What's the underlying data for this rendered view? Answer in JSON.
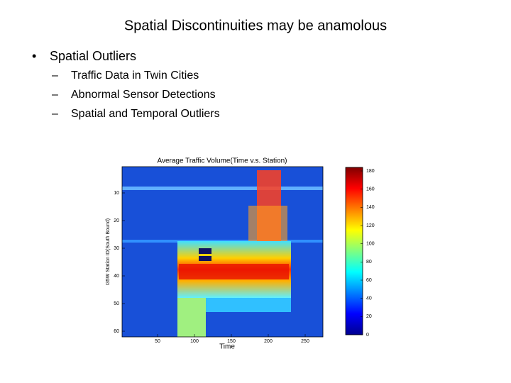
{
  "slide": {
    "title": "Spatial Discontinuities may be anamolous",
    "bullet": "Spatial Outliers",
    "sub_bullets": [
      "Traffic Data in Twin Cities",
      "Abnormal Sensor Detections",
      "Spatial and Temporal Outliers"
    ],
    "figure": {
      "title": "Average Traffic Volume(Time v.s. Station)",
      "x_label": "Time",
      "y_label": "I35W Station ID(South Bound)",
      "x_ticks": [
        "50",
        "100",
        "150",
        "200",
        "250"
      ],
      "y_ticks": [
        "10",
        "20",
        "30",
        "40",
        "50",
        "60"
      ],
      "colorbar_ticks": [
        "180",
        "160",
        "140",
        "120",
        "100",
        "80",
        "60",
        "40",
        "20",
        "0"
      ]
    }
  }
}
